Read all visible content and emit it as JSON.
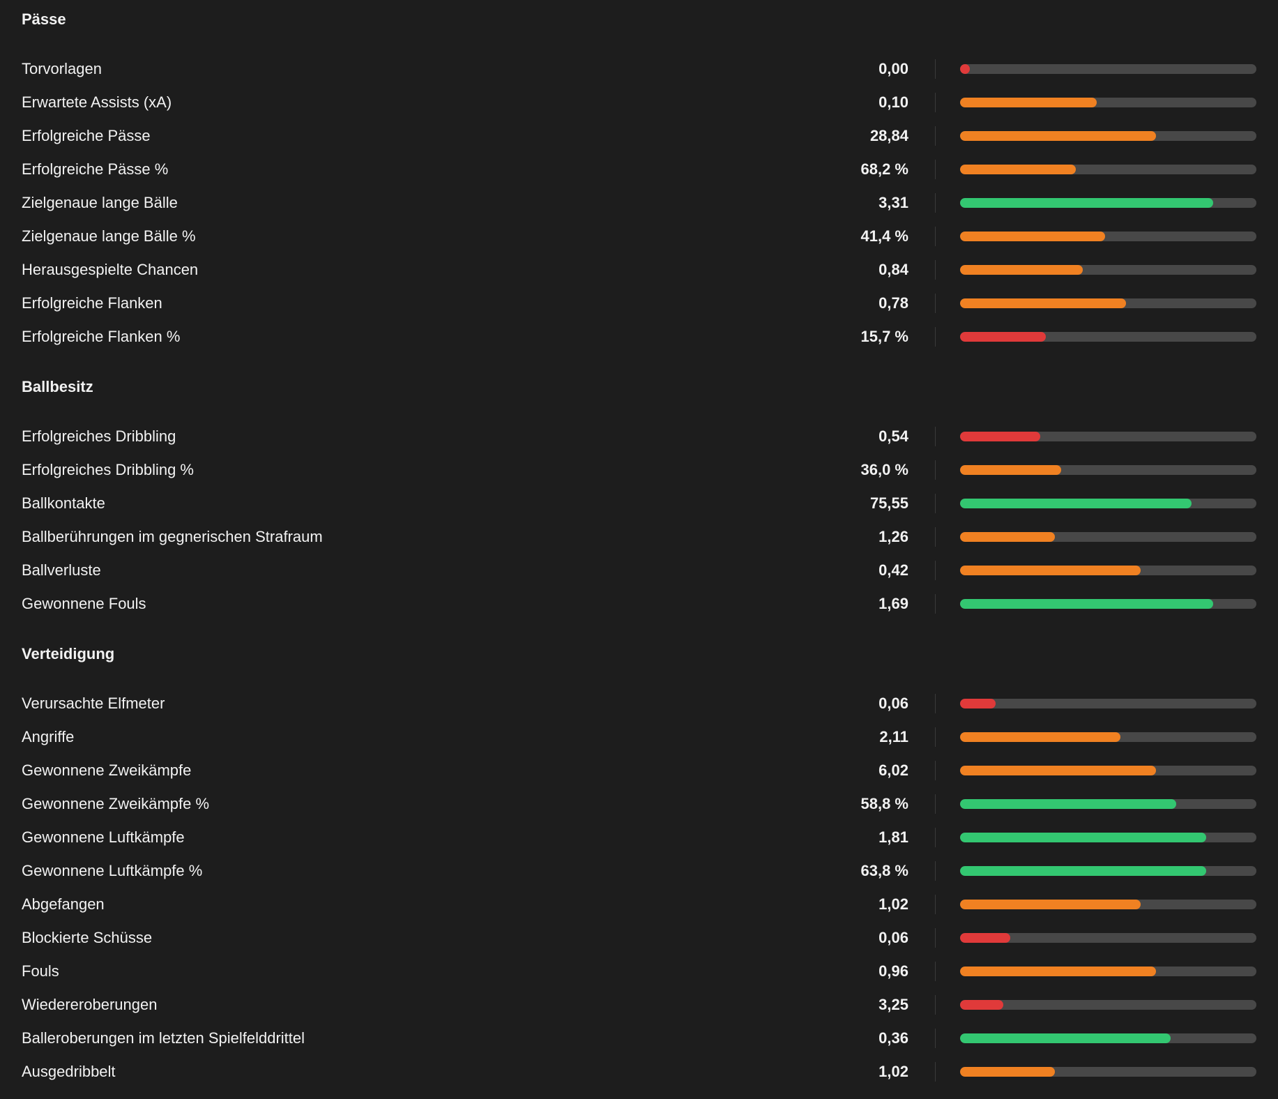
{
  "colors": {
    "low": "#e03a3a",
    "mid": "#f08122",
    "high": "#33c771",
    "track": "#484848"
  },
  "sections": [
    {
      "title": "Pässe",
      "rows": [
        {
          "label": "Torvorlagen",
          "value": "0,00",
          "fill": 0.03,
          "level": "low"
        },
        {
          "label": "Erwartete Assists (xA)",
          "value": "0,10",
          "fill": 0.46,
          "level": "mid"
        },
        {
          "label": "Erfolgreiche Pässe",
          "value": "28,84",
          "fill": 0.66,
          "level": "mid"
        },
        {
          "label": "Erfolgreiche Pässe %",
          "value": "68,2 %",
          "fill": 0.39,
          "level": "mid"
        },
        {
          "label": "Zielgenaue lange Bälle",
          "value": "3,31",
          "fill": 0.855,
          "level": "high"
        },
        {
          "label": "Zielgenaue lange Bälle %",
          "value": "41,4 %",
          "fill": 0.49,
          "level": "mid"
        },
        {
          "label": "Herausgespielte Chancen",
          "value": "0,84",
          "fill": 0.415,
          "level": "mid"
        },
        {
          "label": "Erfolgreiche Flanken",
          "value": "0,78",
          "fill": 0.56,
          "level": "mid"
        },
        {
          "label": "Erfolgreiche Flanken %",
          "value": "15,7 %",
          "fill": 0.29,
          "level": "low"
        }
      ]
    },
    {
      "title": "Ballbesitz",
      "rows": [
        {
          "label": "Erfolgreiches Dribbling",
          "value": "0,54",
          "fill": 0.27,
          "level": "low"
        },
        {
          "label": "Erfolgreiches Dribbling %",
          "value": "36,0 %",
          "fill": 0.34,
          "level": "mid"
        },
        {
          "label": "Ballkontakte",
          "value": "75,55",
          "fill": 0.78,
          "level": "high"
        },
        {
          "label": "Ballberührungen im gegnerischen Strafraum",
          "value": "1,26",
          "fill": 0.32,
          "level": "mid"
        },
        {
          "label": "Ballverluste",
          "value": "0,42",
          "fill": 0.61,
          "level": "mid"
        },
        {
          "label": "Gewonnene Fouls",
          "value": "1,69",
          "fill": 0.855,
          "level": "high"
        }
      ]
    },
    {
      "title": "Verteidigung",
      "rows": [
        {
          "label": "Verursachte Elfmeter",
          "value": "0,06",
          "fill": 0.12,
          "level": "low"
        },
        {
          "label": "Angriffe",
          "value": "2,11",
          "fill": 0.54,
          "level": "mid"
        },
        {
          "label": "Gewonnene Zweikämpfe",
          "value": "6,02",
          "fill": 0.66,
          "level": "mid"
        },
        {
          "label": "Gewonnene Zweikämpfe %",
          "value": "58,8 %",
          "fill": 0.73,
          "level": "high"
        },
        {
          "label": "Gewonnene Luftkämpfe",
          "value": "1,81",
          "fill": 0.83,
          "level": "high"
        },
        {
          "label": "Gewonnene Luftkämpfe %",
          "value": "63,8 %",
          "fill": 0.83,
          "level": "high"
        },
        {
          "label": "Abgefangen",
          "value": "1,02",
          "fill": 0.61,
          "level": "mid"
        },
        {
          "label": "Blockierte Schüsse",
          "value": "0,06",
          "fill": 0.17,
          "level": "low"
        },
        {
          "label": "Fouls",
          "value": "0,96",
          "fill": 0.66,
          "level": "mid"
        },
        {
          "label": "Wiedereroberungen",
          "value": "3,25",
          "fill": 0.145,
          "level": "low"
        },
        {
          "label": "Balleroberungen im letzten Spielfelddrittel",
          "value": "0,36",
          "fill": 0.71,
          "level": "high"
        },
        {
          "label": "Ausgedribbelt",
          "value": "1,02",
          "fill": 0.32,
          "level": "mid"
        }
      ]
    }
  ]
}
